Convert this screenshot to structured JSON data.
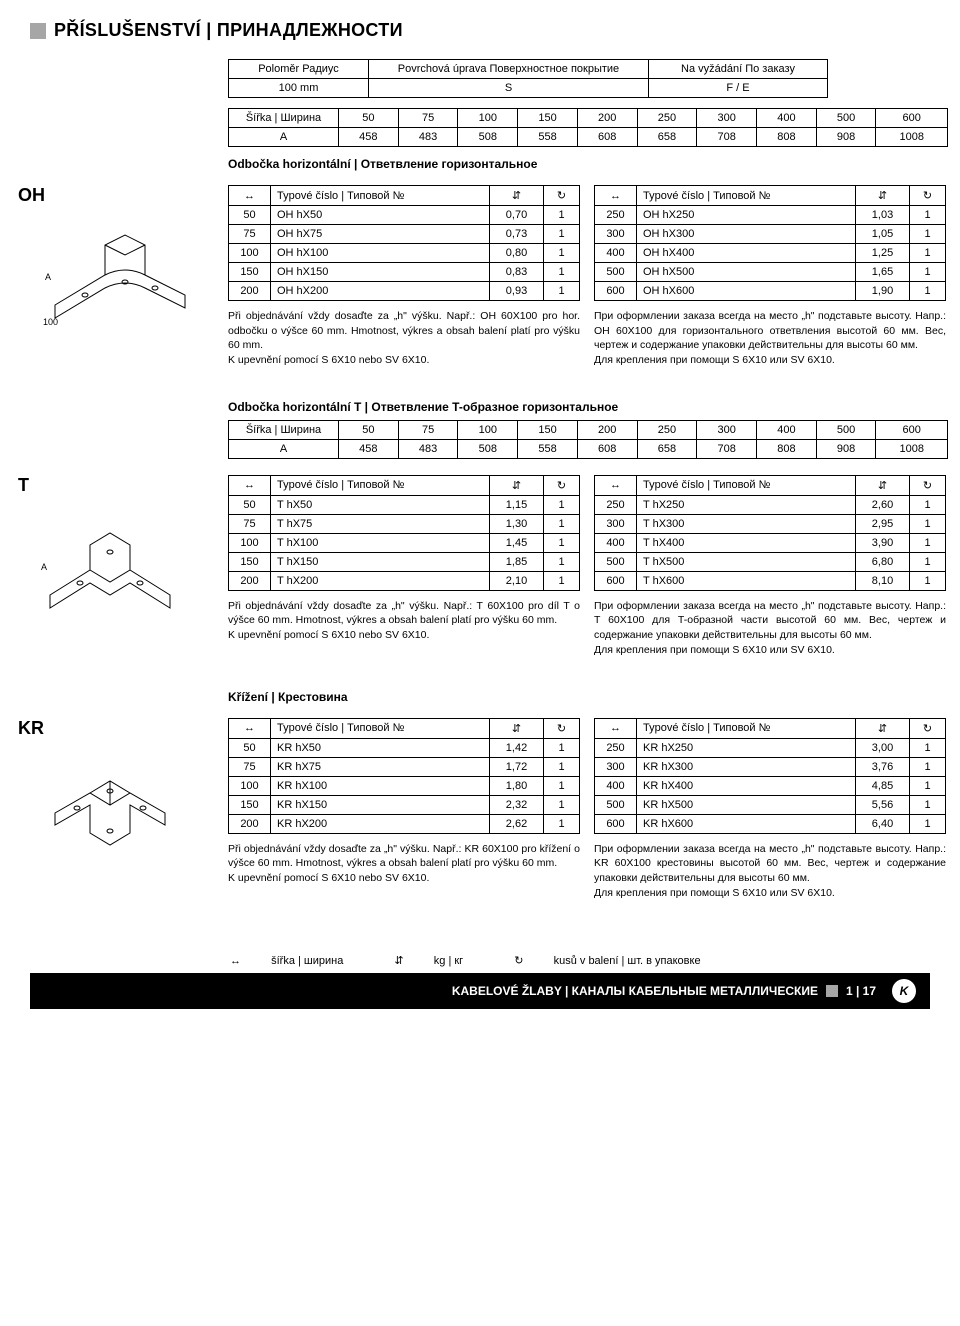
{
  "header": {
    "title": "PŘÍSLUŠENSTVÍ | ПРИНАДЛЕЖНОСТИ"
  },
  "top_table": {
    "rows": [
      [
        "Poloměr\nРадиус",
        "Povrchová úprava\nПоверхностное покрытие",
        "Na vyžádání\nПо заказу"
      ],
      [
        "100 mm",
        "S",
        "F / E"
      ]
    ]
  },
  "width_table": {
    "header": [
      "Šířka | Ширина",
      "50",
      "75",
      "100",
      "150",
      "200",
      "250",
      "300",
      "400",
      "500",
      "600"
    ],
    "row": [
      "A",
      "458",
      "483",
      "508",
      "558",
      "608",
      "658",
      "708",
      "808",
      "908",
      "1008"
    ]
  },
  "symbols": {
    "width": "↔",
    "weight": "⇵",
    "pack": "↻",
    "typecol": "Typové číslo | Типовой №"
  },
  "sections": [
    {
      "code": "OH",
      "title": "Odbočka horizontální | Ответвление горизонтальное",
      "has_width_table": false,
      "drawing": "oh",
      "left": [
        [
          "50",
          "OH hX50",
          "0,70",
          "1"
        ],
        [
          "75",
          "OH hX75",
          "0,73",
          "1"
        ],
        [
          "100",
          "OH hX100",
          "0,80",
          "1"
        ],
        [
          "150",
          "OH hX150",
          "0,83",
          "1"
        ],
        [
          "200",
          "OH hX200",
          "0,93",
          "1"
        ]
      ],
      "right": [
        [
          "250",
          "OH hX250",
          "1,03",
          "1"
        ],
        [
          "300",
          "OH hX300",
          "1,05",
          "1"
        ],
        [
          "400",
          "OH hX400",
          "1,25",
          "1"
        ],
        [
          "500",
          "OH hX500",
          "1,65",
          "1"
        ],
        [
          "600",
          "OH hX600",
          "1,90",
          "1"
        ]
      ],
      "note_cz": "Při objednávání vždy dosaďte za „h\" výšku. Např.: OH 60X100 pro hor. odbočku o výšce 60 mm. Hmotnost, výkres a obsah balení platí pro výšku 60 mm.\nK upevnění pomocí S 6X10 nebo SV 6X10.",
      "note_ru": "При оформлении заказа всегда на место „h\" подставьте высоту. Напр.: OH 60X100 для горизонтального ответвления высотой 60 мм. Вес, чертеж и содержание упаковки действительны для высоты 60 мм.\nДля крепления при помощи S 6X10 или SV 6X10."
    },
    {
      "code": "T",
      "title": "Odbočka horizontální T | Ответвление T-образное горизонтальное",
      "has_width_table": true,
      "drawing": "t",
      "left": [
        [
          "50",
          "T hX50",
          "1,15",
          "1"
        ],
        [
          "75",
          "T hX75",
          "1,30",
          "1"
        ],
        [
          "100",
          "T hX100",
          "1,45",
          "1"
        ],
        [
          "150",
          "T hX150",
          "1,85",
          "1"
        ],
        [
          "200",
          "T hX200",
          "2,10",
          "1"
        ]
      ],
      "right": [
        [
          "250",
          "T hX250",
          "2,60",
          "1"
        ],
        [
          "300",
          "T hX300",
          "2,95",
          "1"
        ],
        [
          "400",
          "T hX400",
          "3,90",
          "1"
        ],
        [
          "500",
          "T hX500",
          "6,80",
          "1"
        ],
        [
          "600",
          "T hX600",
          "8,10",
          "1"
        ]
      ],
      "note_cz": "Při objednávání vždy dosaďte za „h\" výšku. Např.: T 60X100 pro díl T o výšce 60 mm. Hmotnost, výkres a obsah balení platí pro výšku 60 mm.\nK upevnění pomocí S 6X10 nebo SV 6X10.",
      "note_ru": "При оформлении заказа всегда на место „h\" подставьте высоту. Напр.: T 60X100 для T-образной части высотой 60 мм. Вес, чертеж и содержание упаковки действительны для высоты 60 мм.\nДля крепления при помощи S 6X10 или SV 6X10."
    },
    {
      "code": "KR",
      "title": "Křížení | Крестовина",
      "has_width_table": false,
      "drawing": "kr",
      "left": [
        [
          "50",
          "KR hX50",
          "1,42",
          "1"
        ],
        [
          "75",
          "KR hX75",
          "1,72",
          "1"
        ],
        [
          "100",
          "KR hX100",
          "1,80",
          "1"
        ],
        [
          "150",
          "KR hX150",
          "2,32",
          "1"
        ],
        [
          "200",
          "KR hX200",
          "2,62",
          "1"
        ]
      ],
      "right": [
        [
          "250",
          "KR hX250",
          "3,00",
          "1"
        ],
        [
          "300",
          "KR hX300",
          "3,76",
          "1"
        ],
        [
          "400",
          "KR hX400",
          "4,85",
          "1"
        ],
        [
          "500",
          "KR hX500",
          "5,56",
          "1"
        ],
        [
          "600",
          "KR hX600",
          "6,40",
          "1"
        ]
      ],
      "note_cz": "Při objednávání vždy dosaďte za „h\" výšku. Např.: KR 60X100 pro křížení o výšce 60 mm. Hmotnost, výkres a obsah balení platí pro výšku 60 mm.\nK upevnění pomocí S 6X10 nebo SV 6X10.",
      "note_ru": "При оформлении заказа всегда на место „h\" подставьте высоту. Напр.: KR 60X100 крестовины высотой 60 мм. Вес, чертеж и содержание упаковки действительны для высоты 60 мм.\nДля крепления при помощи S 6X10 или SV 6X10."
    }
  ],
  "legend": {
    "width": "šířka | ширина",
    "weight": "kg | кг",
    "pack": "kusů v balení | шт. в упаковке"
  },
  "footer": {
    "text": "KABELOVÉ ŽLABY | КАНАЛЫ КАБЕЛЬНЫЕ МЕТАЛЛИЧЕСКИЕ",
    "page": "1 | 17",
    "logo": "K"
  }
}
